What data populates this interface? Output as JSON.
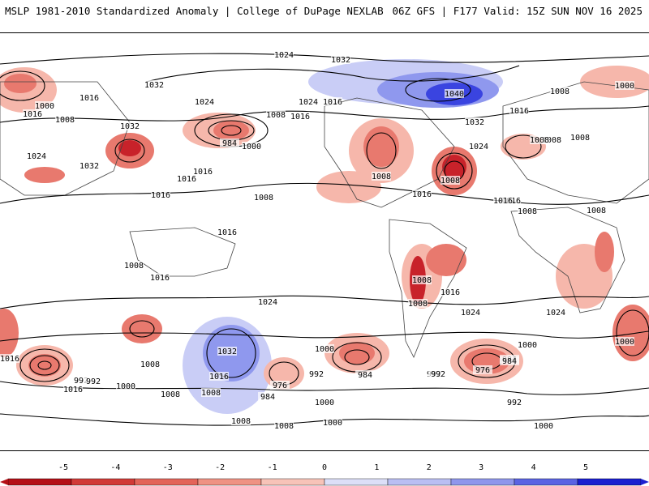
{
  "header": {
    "left": "MSLP 1981-2010 Standardized Anomaly | College of DuPage NEXLAB",
    "right": "06Z GFS | F177 Valid: 15Z SUN NOV 16 2025"
  },
  "colors": {
    "anomaly_neg_strong": "#c8222a",
    "anomaly_neg": "#e8796e",
    "anomaly_neg_weak": "#f6b7ab",
    "anomaly_pos_weak": "#c9cdf6",
    "anomaly_pos": "#8f98ee",
    "anomaly_pos_strong": "#3a44e0",
    "contour": "#000000"
  },
  "colorbar": {
    "ticks": [
      "-5",
      "-4",
      "-3",
      "-2",
      "-1",
      "0",
      "1",
      "2",
      "3",
      "4",
      "5"
    ],
    "colors": [
      "#b40f16",
      "#d13a37",
      "#e36459",
      "#ef9283",
      "#f7c3b8",
      "#ffffff",
      "#dcdff8",
      "#b9bef3",
      "#8e96ec",
      "#5a63e3",
      "#1a1fd0"
    ]
  },
  "contour_labels": [
    "1024",
    "1032",
    "1032",
    "1024",
    "1000",
    "1016",
    "1008",
    "1016",
    "1032",
    "1024",
    "1032",
    "1016",
    "1024",
    "1016",
    "1016",
    "1008",
    "984",
    "1000",
    "1016",
    "1016",
    "1008",
    "1040",
    "1032",
    "1008",
    "1000",
    "1016",
    "1008",
    "1024",
    "1008",
    "1008",
    "1016",
    "1008",
    "1016",
    "1008",
    "1008",
    "1016",
    "1008",
    "1016",
    "1008",
    "1016",
    "1024",
    "1016",
    "1024",
    "1008",
    "1000",
    "1000",
    "992",
    "984",
    "976",
    "992",
    "992",
    "1000",
    "1016",
    "984",
    "1024",
    "1008",
    "1032",
    "1016",
    "1008",
    "992",
    "1000",
    "992",
    "984",
    "1008",
    "1008",
    "1000",
    "976",
    "984",
    "992",
    "1000",
    "1016",
    "1000",
    "1008",
    "1008"
  ]
}
